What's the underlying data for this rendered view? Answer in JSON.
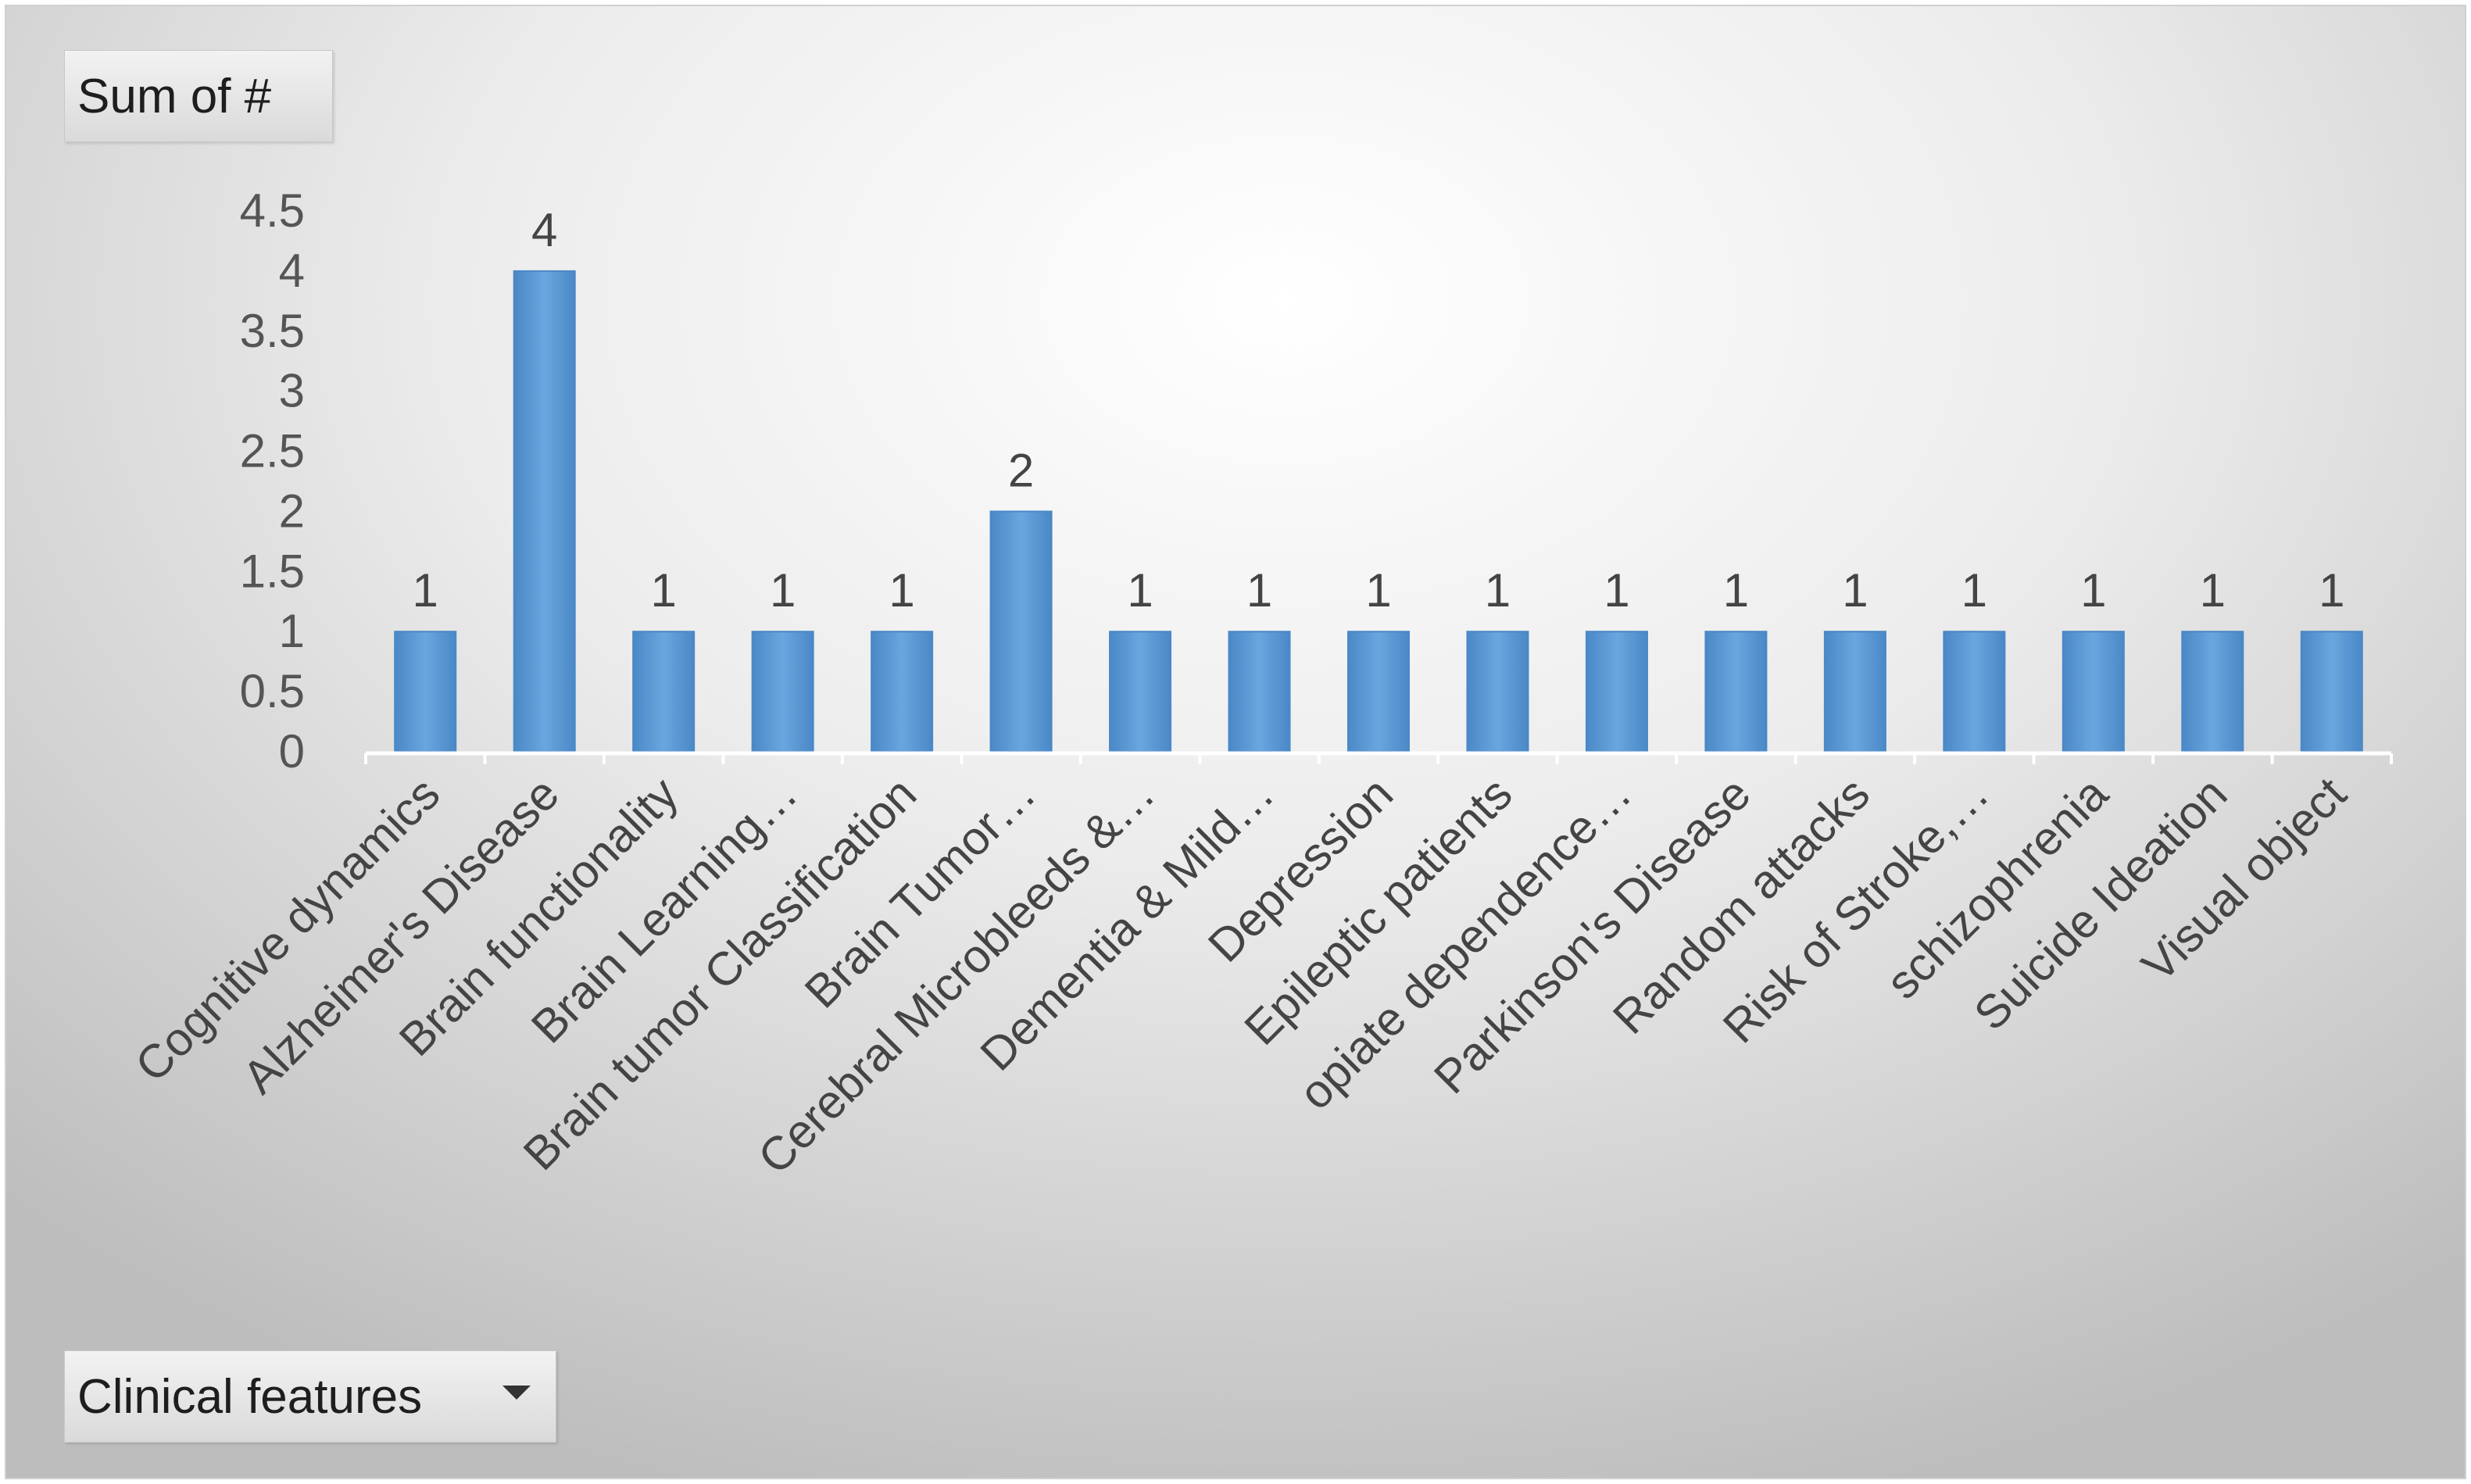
{
  "pivot": {
    "value_field": "Sum of #",
    "axis_field": "Clinical features"
  },
  "colors": {
    "bar": "#5b9bd5",
    "bar_dark": "#4a88c7"
  },
  "chart_data": {
    "type": "bar",
    "categories": [
      "Cognitive dynamics",
      "Alzheimer's Disease",
      "Brain functionality",
      "Brain Learning…",
      "Brain tumor Classification",
      "Brain Tumor…",
      "Cerebral Microbleeds &…",
      "Dementia & Mild…",
      "Depression",
      "Epileptic patients",
      "opiate dependence…",
      "Parkinson's Disease",
      "Random attacks",
      "Risk of Stroke,…",
      "schizophrenia",
      "Suicide Ideation",
      "Visual object"
    ],
    "values": [
      1,
      4,
      1,
      1,
      1,
      2,
      1,
      1,
      1,
      1,
      1,
      1,
      1,
      1,
      1,
      1,
      1
    ],
    "data_labels": [
      "1",
      "4",
      "1",
      "1",
      "1",
      "2",
      "1",
      "1",
      "1",
      "1",
      "1",
      "1",
      "1",
      "1",
      "1",
      "1",
      "1"
    ],
    "yticks": [
      "0",
      "0.5",
      "1",
      "1.5",
      "2",
      "2.5",
      "3",
      "3.5",
      "4",
      "4.5"
    ],
    "ylim": [
      0,
      4.5
    ],
    "grid": false,
    "legend": "none"
  }
}
